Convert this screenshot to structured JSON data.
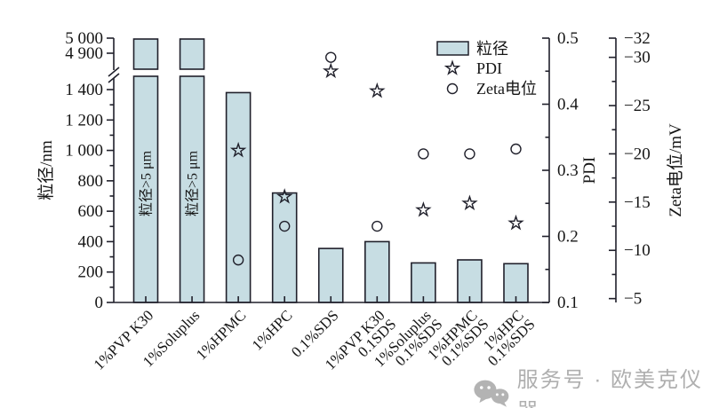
{
  "chart_data": {
    "type": "bar",
    "title": "",
    "legend": {
      "items": [
        {
          "label": "粒径",
          "marker": "bar-swatch"
        },
        {
          "label": "PDI",
          "marker": "open-star"
        },
        {
          "label": "Zeta电位",
          "marker": "open-circle"
        }
      ],
      "position": "top-right-inside"
    },
    "axes": {
      "y_left": {
        "label": "粒径/nm",
        "lower_ticks": [
          0,
          200,
          400,
          600,
          800,
          1000,
          1200,
          1400
        ],
        "lower_tick_labels": [
          "0",
          "200",
          "400",
          "600",
          "800",
          "1 000",
          "1 200",
          "1 400"
        ],
        "lower_minor_ticks": [
          100,
          300,
          500,
          700,
          900,
          1100,
          1300
        ],
        "axis_break": true,
        "upper_ticks": [
          4900,
          5000
        ],
        "upper_tick_labels": [
          "4 900",
          "5 000"
        ]
      },
      "y_right_pdi": {
        "label": "PDI",
        "min": 0.1,
        "max": 0.5,
        "ticks": [
          0.1,
          0.2,
          0.3,
          0.4,
          0.5
        ],
        "tick_labels": [
          "0.1",
          "0.2",
          "0.3",
          "0.4",
          "0.5"
        ],
        "minor_ticks": [
          0.15,
          0.25,
          0.35,
          0.45
        ]
      },
      "y_right_zeta": {
        "label": "Zeta电位/mV",
        "ticks": [
          -5,
          -10,
          -15,
          -20,
          -25,
          -30,
          -32
        ],
        "tick_labels": [
          "−5",
          "−10",
          "−15",
          "−20",
          "−25",
          "−30",
          "−32"
        ],
        "minor_ticks": [
          -7.5,
          -12.5,
          -17.5,
          -22.5,
          -27.5
        ]
      },
      "grid": false
    },
    "categories": [
      {
        "line1": "1%PVP K30",
        "line2": ""
      },
      {
        "line1": "1%Soluplus",
        "line2": ""
      },
      {
        "line1": "1%HPMC",
        "line2": ""
      },
      {
        "line1": "1%HPC",
        "line2": ""
      },
      {
        "line1": "0.1%SDS",
        "line2": ""
      },
      {
        "line1": "1%PVP K30",
        "line2": "0.1SDS"
      },
      {
        "line1": "1%Soluplus",
        "line2": "0.1%SDS"
      },
      {
        "line1": "1%HPMC",
        "line2": "0.1%SDS"
      },
      {
        "line1": "1%HPC",
        "line2": "0.1%SDS"
      }
    ],
    "offscale_label": "粒径>5 μm",
    "series": {
      "size_nm": {
        "name": "粒径",
        "unit": "nm",
        "values": [
          5000,
          5000,
          1380,
          720,
          355,
          400,
          260,
          280,
          255
        ],
        "offscale": [
          true,
          true,
          false,
          false,
          false,
          false,
          false,
          false,
          false
        ]
      },
      "pdi": {
        "name": "PDI",
        "values": [
          null,
          null,
          0.33,
          0.26,
          0.45,
          0.42,
          0.24,
          0.25,
          0.22
        ]
      },
      "zeta_mV": {
        "name": "Zeta电位",
        "unit": "mV",
        "values": [
          null,
          null,
          -9,
          -12.5,
          -30,
          -12.5,
          -20,
          -20,
          -20.5
        ]
      }
    }
  },
  "colors": {
    "background": "#ffffff",
    "bar_fill": "#c7dde3",
    "bar_stroke": "#20202b",
    "axis": "#20202b",
    "text": "#161616",
    "watermark": "#afafaf"
  },
  "watermark": {
    "icon": "wechat-icon",
    "text": "服务号 · 欧美克仪器"
  }
}
